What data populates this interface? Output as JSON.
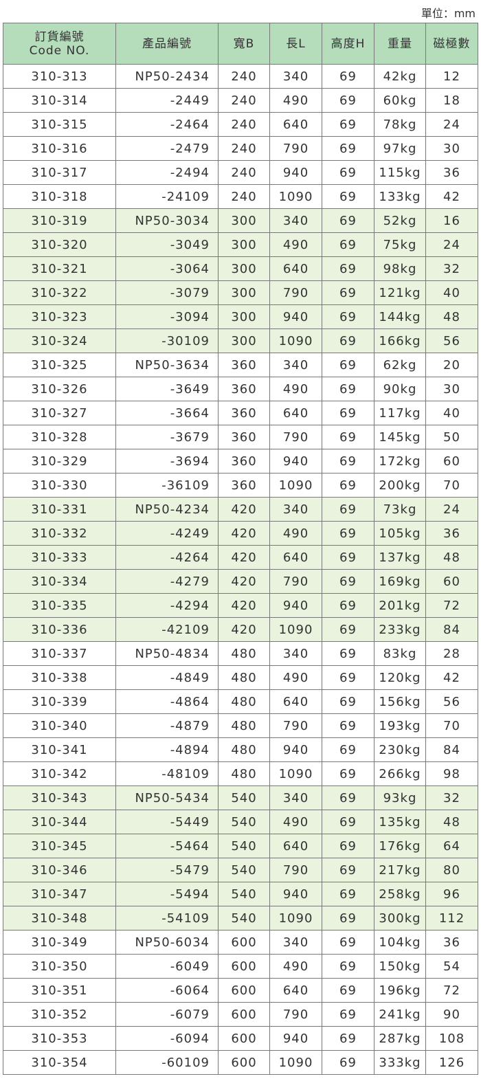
{
  "unit_label": "單位：mm",
  "header": {
    "code_zh": "訂貨編號",
    "code_en": "Code NO.",
    "product": "產品編號",
    "width": "寬B",
    "length": "長L",
    "height": "高度H",
    "weight": "重量",
    "poles": "磁極數"
  },
  "colors": {
    "header_bg": "#b5dcbb",
    "shaded_row_bg": "#e9f3de"
  },
  "rows": [
    [
      "310-313",
      "NP50-2434",
      "240",
      "340",
      "69",
      "42kg",
      "12"
    ],
    [
      "310-314",
      "-2449",
      "240",
      "490",
      "69",
      "60kg",
      "18"
    ],
    [
      "310-315",
      "-2464",
      "240",
      "640",
      "69",
      "78kg",
      "24"
    ],
    [
      "310-316",
      "-2479",
      "240",
      "790",
      "69",
      "97kg",
      "30"
    ],
    [
      "310-317",
      "-2494",
      "240",
      "940",
      "69",
      "115kg",
      "36"
    ],
    [
      "310-318",
      "-24109",
      "240",
      "1090",
      "69",
      "133kg",
      "42"
    ],
    [
      "310-319",
      "NP50-3034",
      "300",
      "340",
      "69",
      "52kg",
      "16"
    ],
    [
      "310-320",
      "-3049",
      "300",
      "490",
      "69",
      "75kg",
      "24"
    ],
    [
      "310-321",
      "-3064",
      "300",
      "640",
      "69",
      "98kg",
      "32"
    ],
    [
      "310-322",
      "-3079",
      "300",
      "790",
      "69",
      "121kg",
      "40"
    ],
    [
      "310-323",
      "-3094",
      "300",
      "940",
      "69",
      "144kg",
      "48"
    ],
    [
      "310-324",
      "-30109",
      "300",
      "1090",
      "69",
      "166kg",
      "56"
    ],
    [
      "310-325",
      "NP50-3634",
      "360",
      "340",
      "69",
      "62kg",
      "20"
    ],
    [
      "310-326",
      "-3649",
      "360",
      "490",
      "69",
      "90kg",
      "30"
    ],
    [
      "310-327",
      "-3664",
      "360",
      "640",
      "69",
      "117kg",
      "40"
    ],
    [
      "310-328",
      "-3679",
      "360",
      "790",
      "69",
      "145kg",
      "50"
    ],
    [
      "310-329",
      "-3694",
      "360",
      "940",
      "69",
      "172kg",
      "60"
    ],
    [
      "310-330",
      "-36109",
      "360",
      "1090",
      "69",
      "200kg",
      "70"
    ],
    [
      "310-331",
      "NP50-4234",
      "420",
      "340",
      "69",
      "73kg",
      "24"
    ],
    [
      "310-332",
      "-4249",
      "420",
      "490",
      "69",
      "105kg",
      "36"
    ],
    [
      "310-333",
      "-4264",
      "420",
      "640",
      "69",
      "137kg",
      "48"
    ],
    [
      "310-334",
      "-4279",
      "420",
      "790",
      "69",
      "169kg",
      "60"
    ],
    [
      "310-335",
      "-4294",
      "420",
      "940",
      "69",
      "201kg",
      "72"
    ],
    [
      "310-336",
      "-42109",
      "420",
      "1090",
      "69",
      "233kg",
      "84"
    ],
    [
      "310-337",
      "NP50-4834",
      "480",
      "340",
      "69",
      "83kg",
      "28"
    ],
    [
      "310-338",
      "-4849",
      "480",
      "490",
      "69",
      "120kg",
      "42"
    ],
    [
      "310-339",
      "-4864",
      "480",
      "640",
      "69",
      "156kg",
      "56"
    ],
    [
      "310-340",
      "-4879",
      "480",
      "790",
      "69",
      "193kg",
      "70"
    ],
    [
      "310-341",
      "-4894",
      "480",
      "940",
      "69",
      "230kg",
      "84"
    ],
    [
      "310-342",
      "-48109",
      "480",
      "1090",
      "69",
      "266kg",
      "98"
    ],
    [
      "310-343",
      "NP50-5434",
      "540",
      "340",
      "69",
      "93kg",
      "32"
    ],
    [
      "310-344",
      "-5449",
      "540",
      "490",
      "69",
      "135kg",
      "48"
    ],
    [
      "310-345",
      "-5464",
      "540",
      "640",
      "69",
      "176kg",
      "64"
    ],
    [
      "310-346",
      "-5479",
      "540",
      "790",
      "69",
      "217kg",
      "80"
    ],
    [
      "310-347",
      "-5494",
      "540",
      "940",
      "69",
      "258kg",
      "96"
    ],
    [
      "310-348",
      "-54109",
      "540",
      "1090",
      "69",
      "300kg",
      "112"
    ],
    [
      "310-349",
      "NP50-6034",
      "600",
      "340",
      "69",
      "104kg",
      "36"
    ],
    [
      "310-350",
      "-6049",
      "600",
      "490",
      "69",
      "150kg",
      "54"
    ],
    [
      "310-351",
      "-6064",
      "600",
      "640",
      "69",
      "196kg",
      "72"
    ],
    [
      "310-352",
      "-6079",
      "600",
      "790",
      "69",
      "241kg",
      "90"
    ],
    [
      "310-353",
      "-6094",
      "600",
      "940",
      "69",
      "287kg",
      "108"
    ],
    [
      "310-354",
      "-60109",
      "600",
      "1090",
      "69",
      "333kg",
      "126"
    ]
  ]
}
